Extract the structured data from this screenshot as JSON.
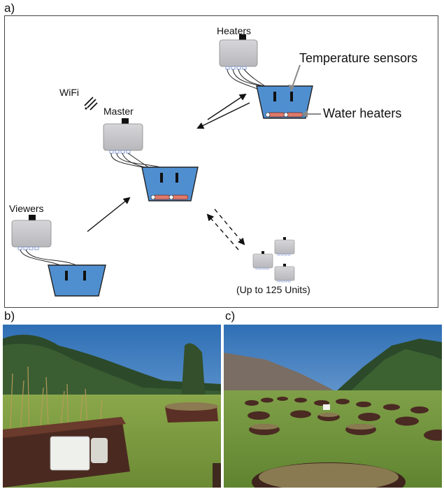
{
  "panels": {
    "a": "a)",
    "b": "b)",
    "c": "c)"
  },
  "diagram": {
    "heaters": "Heaters",
    "temperature_sensors": "Temperature sensors",
    "water_heaters": "Water heaters",
    "wifi": "WiFi",
    "master": "Master",
    "viewers": "Viewers",
    "units_note": "(Up to 125 Units)"
  },
  "colors": {
    "water": "#4f8fd0",
    "controller_box": "#c9c9cc",
    "heater_element": "#e07a6a",
    "photo_sky": "#2f6fb5",
    "photo_grass": "#7a9a3e",
    "photo_forest": "#2c4a2a"
  }
}
